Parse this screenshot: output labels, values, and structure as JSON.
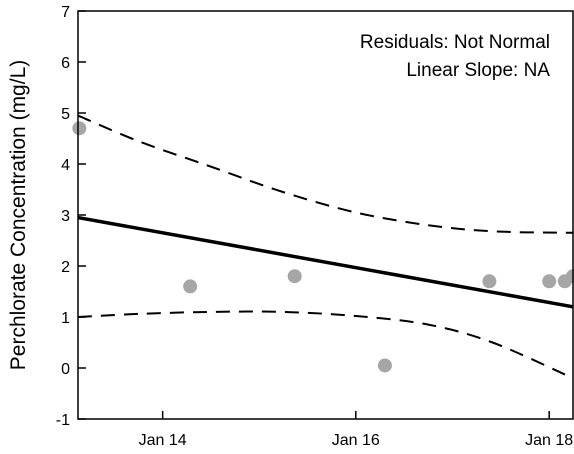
{
  "chart_data": {
    "type": "scatter",
    "title": "",
    "xlabel": "",
    "ylabel": "Perchlorate Concentration (mg/L)",
    "xlim": [
      "2013-02-15",
      "2018-04-01"
    ],
    "ylim": [
      -1,
      7
    ],
    "x_ticks": [
      {
        "label": "Jan 14",
        "date": "2014-01-01"
      },
      {
        "label": "Jan 16",
        "date": "2016-01-01"
      },
      {
        "label": "Jan 18",
        "date": "2018-01-01"
      }
    ],
    "y_ticks": [
      -1,
      0,
      1,
      2,
      3,
      4,
      5,
      6,
      7
    ],
    "grid": false,
    "annotations": [
      "Residuals:  Not Normal",
      "Linear Slope:  NA"
    ],
    "points": [
      {
        "date": "2013-02-20",
        "value": 4.7
      },
      {
        "date": "2014-04-15",
        "value": 1.6
      },
      {
        "date": "2015-05-15",
        "value": 1.8
      },
      {
        "date": "2016-04-20",
        "value": 0.05
      },
      {
        "date": "2017-05-20",
        "value": 1.7
      },
      {
        "date": "2018-01-01",
        "value": 1.7
      },
      {
        "date": "2018-03-01",
        "value": 1.7
      },
      {
        "date": "2018-04-01",
        "value": 1.8
      }
    ],
    "trend_line": [
      {
        "date": "2013-02-15",
        "value": 2.95
      },
      {
        "date": "2018-04-01",
        "value": 1.2
      }
    ],
    "upper_bound": [
      {
        "date": "2013-02-15",
        "value": 4.95
      },
      {
        "date": "2013-10-01",
        "value": 4.45
      },
      {
        "date": "2014-07-01",
        "value": 3.95
      },
      {
        "date": "2015-04-01",
        "value": 3.45
      },
      {
        "date": "2016-01-01",
        "value": 3.05
      },
      {
        "date": "2016-10-01",
        "value": 2.8
      },
      {
        "date": "2017-06-01",
        "value": 2.68
      },
      {
        "date": "2018-04-01",
        "value": 2.65
      }
    ],
    "lower_bound": [
      {
        "date": "2013-02-15",
        "value": 1.0
      },
      {
        "date": "2013-10-01",
        "value": 1.06
      },
      {
        "date": "2014-07-01",
        "value": 1.1
      },
      {
        "date": "2015-04-01",
        "value": 1.1
      },
      {
        "date": "2016-01-01",
        "value": 1.02
      },
      {
        "date": "2016-10-01",
        "value": 0.85
      },
      {
        "date": "2017-06-01",
        "value": 0.5
      },
      {
        "date": "2018-04-01",
        "value": -0.2
      }
    ],
    "colors": {
      "points": "#a6a6a6",
      "trend": "#000000",
      "bounds": "#000000"
    }
  }
}
